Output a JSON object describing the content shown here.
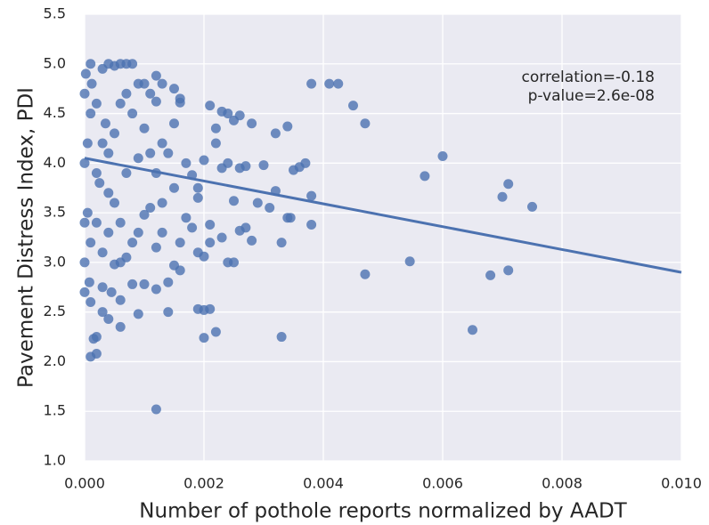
{
  "chart_data": {
    "type": "scatter",
    "xlabel": "Number of pothole reports normalized by AADT",
    "ylabel": "Pavement Distress Index, PDI",
    "annotations": [
      "correlation=-0.18",
      "p-value=2.6e-08"
    ],
    "xlim": [
      0,
      0.01
    ],
    "ylim": [
      1.0,
      5.5
    ],
    "xticks": [
      {
        "value": 0,
        "label": "0.000"
      },
      {
        "value": 0.002,
        "label": "0.002"
      },
      {
        "value": 0.004,
        "label": "0.004"
      },
      {
        "value": 0.006,
        "label": "0.006"
      },
      {
        "value": 0.008,
        "label": "0.008"
      },
      {
        "value": 0.01,
        "label": "0.010"
      }
    ],
    "yticks": [
      {
        "value": 1,
        "label": "1.0"
      },
      {
        "value": 1.5,
        "label": "1.5"
      },
      {
        "value": 2,
        "label": "2.0"
      },
      {
        "value": 2.5,
        "label": "2.5"
      },
      {
        "value": 3,
        "label": "3.0"
      },
      {
        "value": 3.5,
        "label": "3.5"
      },
      {
        "value": 4,
        "label": "4.0"
      },
      {
        "value": 4.5,
        "label": "4.5"
      },
      {
        "value": 5,
        "label": "5.0"
      },
      {
        "value": 5.5,
        "label": "5.5"
      }
    ],
    "grid": true,
    "color": "#4c72b0",
    "background": "#eaeaf2",
    "x": [
      0.0038,
      0.0041,
      0.00425,
      0.0045,
      0.0047,
      0.0034,
      0.0032,
      0.0028,
      0.0026,
      0.006,
      0.0057,
      0.0071,
      0.007,
      0.0075,
      0.00545,
      0.0071,
      0.0068,
      0.0047,
      0.0065,
      0.0033,
      0.0037,
      0.0036,
      0.0035,
      0.0038,
      0.0038,
      0.0034,
      0.00345,
      0.0033,
      0.0031,
      0.0032,
      0.003,
      0.0029,
      0.0028,
      0.0027,
      0.0026,
      0.0025,
      0.0025,
      0.0024,
      0.0023,
      0.0022,
      0.002,
      0.0021,
      0.002,
      0.0019,
      0.0023,
      0.0024,
      0.0026,
      0.0027,
      0.0022,
      0.0022,
      0.0023,
      0.0024,
      0.0021,
      0.0025,
      0.002,
      0.0019,
      0.0021,
      0.0021,
      0.002,
      0.0019,
      0.0018,
      0.0017,
      0.0016,
      0.0015,
      0.0014,
      0.0014,
      0.0012,
      0.0012,
      0.001,
      0.0009,
      0.0008,
      0.0006,
      0.0006,
      0.0004,
      0.0002,
      0.0001,
      0.00015,
      0.0002,
      0.0003,
      0.0016,
      0.0016,
      0.0015,
      0.0015,
      0.0013,
      0.0012,
      0.0012,
      0.0011,
      0.001,
      0.0009,
      0.0008,
      0.0007,
      0.0006,
      0.0005,
      0.0004,
      0.0003,
      0.0001,
      0.0017,
      0.0018,
      0.0019,
      0.0013,
      0.0014,
      0.0012,
      0.0011,
      0.001,
      0.0009,
      0.0008,
      0.0007,
      0.0006,
      0.0005,
      0.0004,
      0.0003,
      0.0002,
      0.0001,
      5e-05,
      0,
      0,
      0,
      0,
      0,
      8e-05,
      0.0003,
      0.0004,
      0.0005,
      0.0006,
      0.0007,
      0.0008,
      0.0009,
      0.001,
      0.0011,
      0.0013,
      0.0013,
      0.0015,
      0.0016,
      0.0012,
      0.0002,
      0.0001,
      5e-05,
      0.0002,
      0.0003,
      0.0001,
      2e-05,
      0.00012,
      0.00025,
      0.00035,
      0.0005,
      0.00045,
      0.0006,
      0.0007,
      0.0004
    ],
    "y": [
      4.8,
      4.8,
      4.8,
      4.58,
      4.4,
      4.37,
      4.3,
      4.4,
      4.48,
      4.07,
      3.87,
      3.79,
      3.66,
      3.56,
      3.01,
      2.92,
      2.87,
      2.88,
      2.32,
      2.25,
      4.0,
      3.96,
      3.93,
      3.67,
      3.38,
      3.45,
      3.45,
      3.2,
      3.55,
      3.72,
      3.98,
      3.6,
      3.22,
      3.35,
      3.32,
      3.62,
      3.0,
      3.0,
      3.25,
      2.3,
      2.24,
      2.53,
      2.52,
      2.53,
      3.95,
      4.0,
      3.95,
      3.97,
      4.2,
      4.35,
      4.52,
      4.5,
      4.58,
      4.43,
      4.03,
      3.75,
      3.38,
      3.2,
      3.06,
      3.1,
      3.35,
      3.45,
      2.92,
      2.97,
      2.8,
      2.5,
      1.52,
      2.73,
      2.78,
      2.48,
      2.78,
      2.62,
      2.35,
      2.43,
      2.25,
      2.05,
      2.23,
      2.08,
      2.5,
      4.61,
      4.65,
      4.4,
      4.75,
      4.8,
      4.88,
      4.62,
      4.7,
      4.8,
      4.8,
      5.0,
      5.0,
      5.0,
      4.98,
      5.0,
      4.95,
      5.0,
      4.0,
      3.88,
      3.65,
      4.2,
      4.1,
      3.9,
      3.55,
      3.48,
      3.3,
      3.2,
      3.05,
      3.0,
      2.98,
      3.7,
      4.2,
      3.9,
      4.5,
      3.5,
      3.0,
      4.0,
      2.7,
      4.7,
      3.4,
      2.8,
      2.75,
      3.3,
      4.3,
      4.6,
      3.9,
      4.5,
      4.05,
      4.35,
      4.1,
      3.6,
      3.3,
      3.75,
      3.2,
      3.15,
      3.4,
      3.2,
      4.2,
      4.6,
      3.1,
      2.6,
      4.9,
      4.8,
      3.8,
      4.4,
      3.6,
      2.7,
      3.4,
      4.7,
      4.1
    ],
    "regression": {
      "x": [
        0,
        0.01
      ],
      "y": [
        4.05,
        2.9
      ]
    }
  }
}
